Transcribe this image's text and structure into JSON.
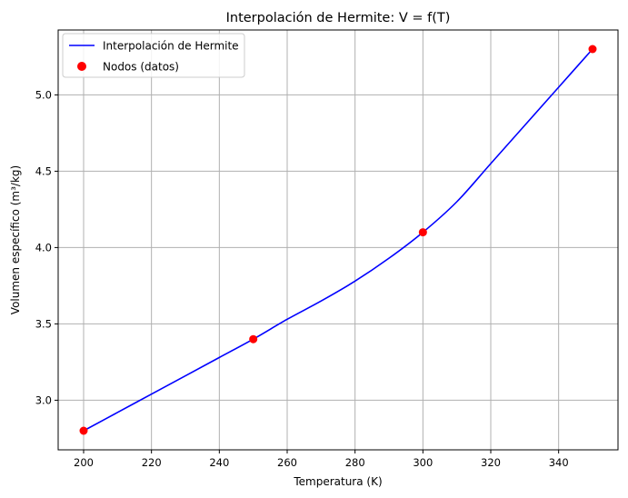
{
  "chart_data": {
    "type": "line",
    "title": "Interpolación de Hermite: V = f(T)",
    "xlabel": "Temperatura (K)",
    "ylabel": "Volumen específico (m³/kg)",
    "xlim": [
      192.5,
      357.5
    ],
    "ylim": [
      2.675,
      5.425
    ],
    "xticks": [
      200,
      220,
      240,
      260,
      280,
      300,
      320,
      340
    ],
    "yticks": [
      3.0,
      3.5,
      4.0,
      4.5,
      5.0
    ],
    "xtick_labels": [
      "200",
      "220",
      "240",
      "260",
      "280",
      "300",
      "320",
      "340"
    ],
    "ytick_labels": [
      "3.0",
      "3.5",
      "4.0",
      "4.5",
      "5.0"
    ],
    "grid": true,
    "legend_position": "top-left",
    "series": [
      {
        "name": "Interpolación de Hermite",
        "kind": "line",
        "color": "#0000ff",
        "x": [
          200,
          210,
          220,
          230,
          240,
          250,
          260,
          270,
          280,
          290,
          300,
          310,
          320,
          330,
          340,
          350
        ],
        "y": [
          2.8,
          2.92,
          3.04,
          3.16,
          3.28,
          3.4,
          3.53,
          3.65,
          3.78,
          3.93,
          4.1,
          4.3,
          4.55,
          4.8,
          5.05,
          5.3
        ]
      },
      {
        "name": "Nodos (datos)",
        "kind": "scatter",
        "color": "#ff0000",
        "x": [
          200,
          250,
          300,
          350
        ],
        "y": [
          2.8,
          3.4,
          4.1,
          5.3
        ]
      }
    ]
  }
}
